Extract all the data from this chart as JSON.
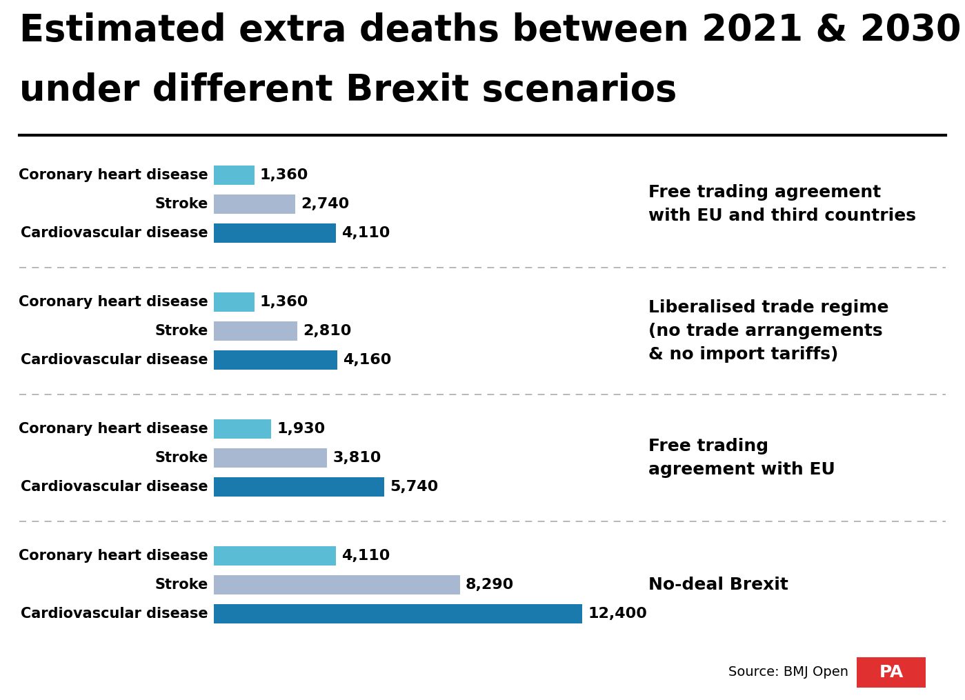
{
  "title_line1": "Estimated extra deaths between 2021 & 2030",
  "title_line2": "under different Brexit scenarios",
  "background_color": "#ffffff",
  "title_fontsize": 38,
  "title_fontweight": "bold",
  "bar_label_fontsize": 16,
  "category_label_fontsize": 15,
  "scenario_label_fontsize": 18,
  "source_text": "Source: BMJ Open",
  "scenarios": [
    {
      "label": "Free trading agreement\nwith EU and third countries",
      "bars": [
        {
          "category": "Coronary heart disease",
          "value": 1360,
          "label": "1,360",
          "color": "#5bbcd6"
        },
        {
          "category": "Stroke",
          "value": 2740,
          "label": "2,740",
          "color": "#a8b8d0"
        },
        {
          "category": "Cardiovascular disease",
          "value": 4110,
          "label": "4,110",
          "color": "#1a7aad"
        }
      ]
    },
    {
      "label": "Liberalised trade regime\n(no trade arrangements\n& no import tariffs)",
      "bars": [
        {
          "category": "Coronary heart disease",
          "value": 1360,
          "label": "1,360",
          "color": "#5bbcd6"
        },
        {
          "category": "Stroke",
          "value": 2810,
          "label": "2,810",
          "color": "#a8b8d0"
        },
        {
          "category": "Cardiovascular disease",
          "value": 4160,
          "label": "4,160",
          "color": "#1a7aad"
        }
      ]
    },
    {
      "label": "Free trading\nagreement with EU",
      "bars": [
        {
          "category": "Coronary heart disease",
          "value": 1930,
          "label": "1,930",
          "color": "#5bbcd6"
        },
        {
          "category": "Stroke",
          "value": 3810,
          "label": "3,810",
          "color": "#a8b8d0"
        },
        {
          "category": "Cardiovascular disease",
          "value": 5740,
          "label": "5,740",
          "color": "#1a7aad"
        }
      ]
    },
    {
      "label": "No-deal Brexit",
      "bars": [
        {
          "category": "Coronary heart disease",
          "value": 4110,
          "label": "4,110",
          "color": "#5bbcd6"
        },
        {
          "category": "Stroke",
          "value": 8290,
          "label": "8,290",
          "color": "#a8b8d0"
        },
        {
          "category": "Cardiovascular disease",
          "value": 12400,
          "label": "12,400",
          "color": "#1a7aad"
        }
      ]
    }
  ],
  "max_value": 13000,
  "pa_color": "#e03030",
  "divider_color": "#aaaaaa"
}
